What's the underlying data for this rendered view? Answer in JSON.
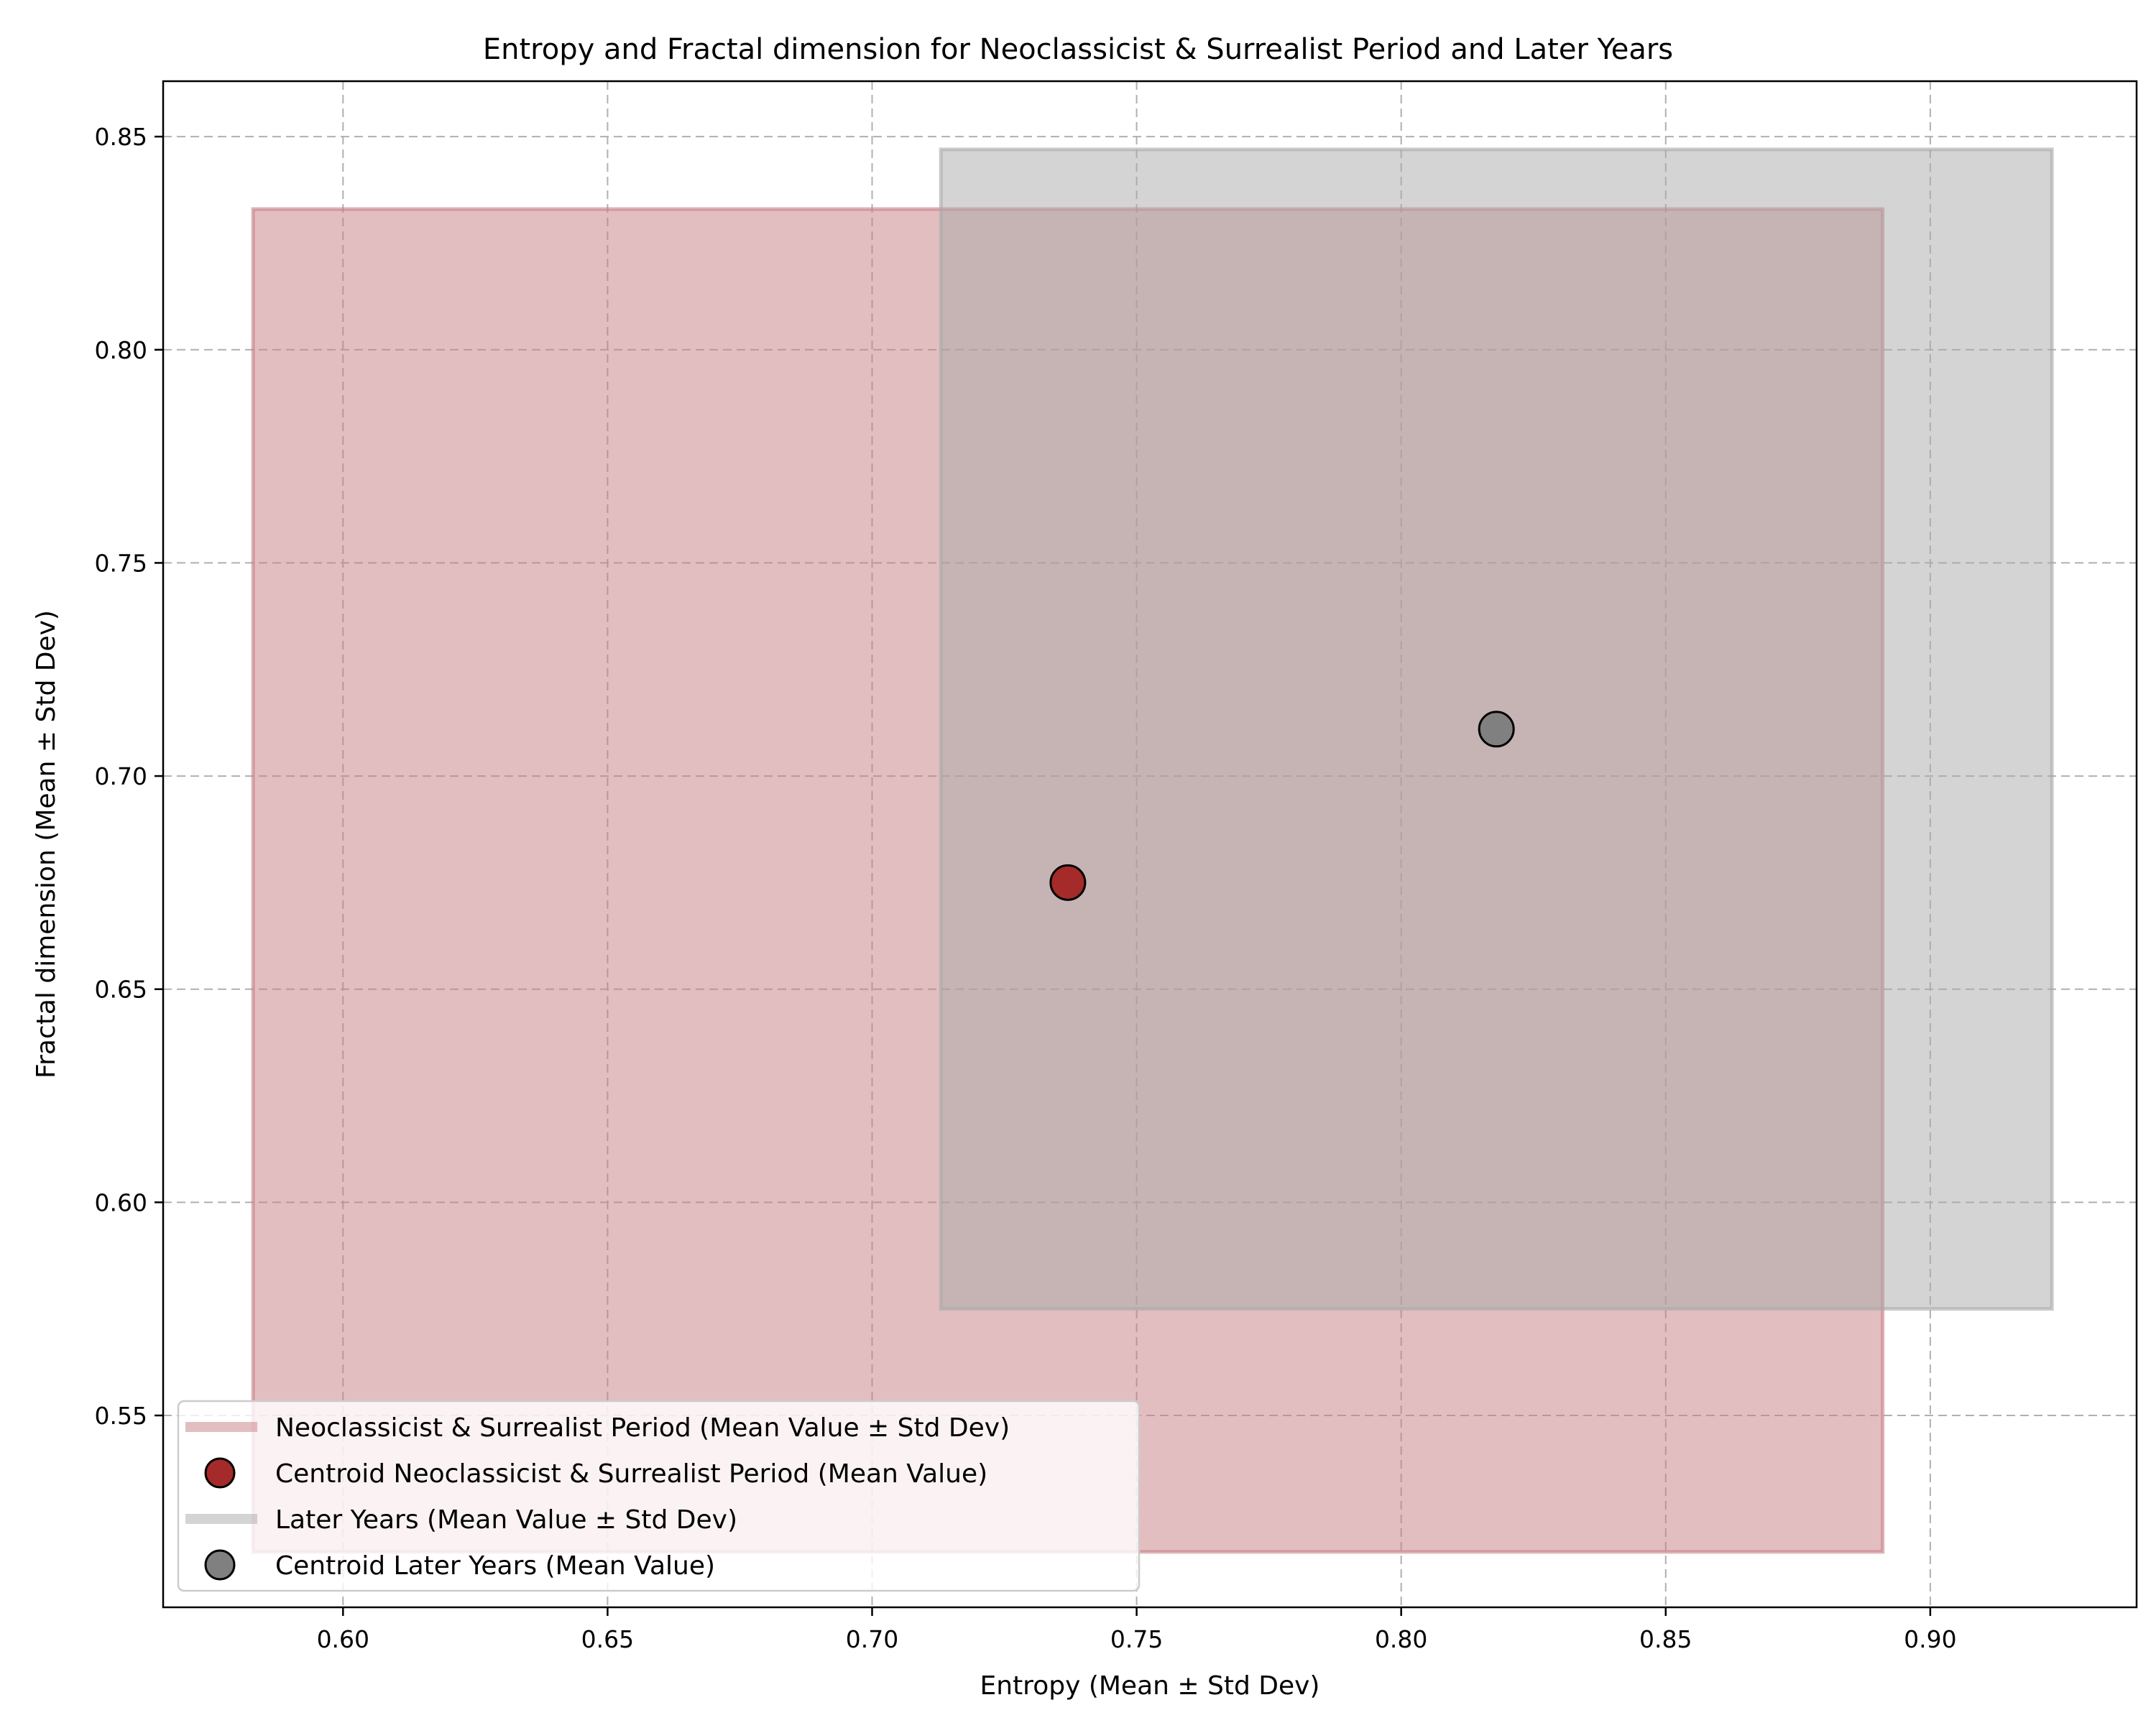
{
  "chart_data": {
    "type": "scatter",
    "title": "Entropy and Fractal dimension for Neoclassicist & Surrealist Period and Later Years",
    "xlabel": "Entropy (Mean ± Std Dev)",
    "ylabel": "Fractal dimension (Mean ± Std Dev)",
    "xlim": [
      0.566,
      0.939
    ],
    "ylim": [
      0.505,
      0.863
    ],
    "xticks": [
      0.6,
      0.65,
      0.7,
      0.75,
      0.8,
      0.85,
      0.9
    ],
    "yticks": [
      0.55,
      0.6,
      0.65,
      0.7,
      0.75,
      0.8,
      0.85
    ],
    "grid": true,
    "legend_position": "lower-left",
    "series": [
      {
        "name": "Neoclassicist & Surrealist Period (Mean Value ± Std Dev)",
        "kind": "range-box",
        "x_range": [
          0.583,
          0.891
        ],
        "y_range": [
          0.518,
          0.833
        ],
        "color": "#c77d84"
      },
      {
        "name": "Centroid Neoclassicist & Surrealist Period (Mean Value)",
        "kind": "centroid",
        "x": 0.737,
        "y": 0.675,
        "color": "#a52a2a"
      },
      {
        "name": "Later Years (Mean Value ± Std Dev)",
        "kind": "range-box",
        "x_range": [
          0.713,
          0.923
        ],
        "y_range": [
          0.575,
          0.847
        ],
        "color": "#a9a9a9"
      },
      {
        "name": "Centroid Later Years (Mean Value)",
        "kind": "centroid",
        "x": 0.818,
        "y": 0.711,
        "color": "#808080"
      }
    ]
  }
}
